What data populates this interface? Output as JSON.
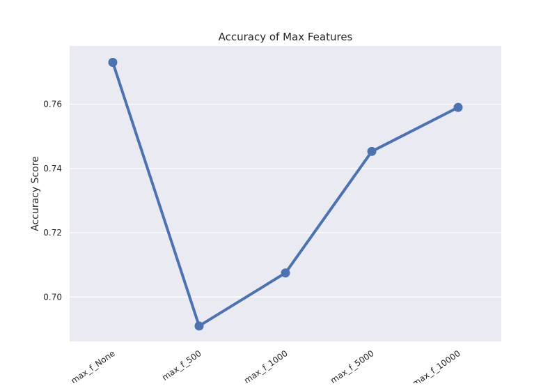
{
  "chart_data": {
    "type": "line",
    "title": "Accuracy of Max Features",
    "xlabel": "",
    "ylabel": "Accuracy Score",
    "categories": [
      "max_f_None",
      "max_f_500",
      "max_f_1000",
      "max_f_5000",
      "max_f_10000"
    ],
    "series": [
      {
        "values": [
          0.773,
          0.691,
          0.7075,
          0.7453,
          0.759
        ]
      }
    ],
    "ylim": [
      0.6862,
      0.7781
    ],
    "yticks": [
      0.7,
      0.72,
      0.74,
      0.76
    ],
    "ytick_labels": [
      "0.70",
      "0.72",
      "0.74",
      "0.76"
    ],
    "grid": true,
    "colors": {
      "line": "#4c72b0",
      "plot_background": "#eaeaf2",
      "grid": "#ffffff"
    }
  }
}
